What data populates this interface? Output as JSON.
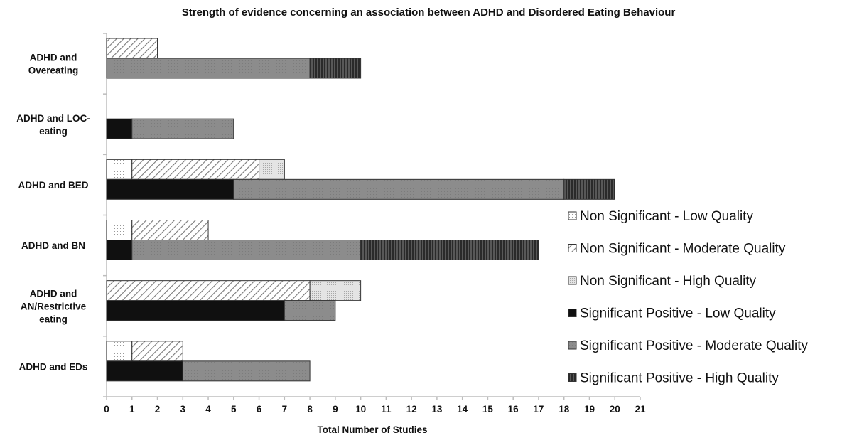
{
  "chart_data": {
    "type": "bar",
    "orientation": "horizontal",
    "stacked": true,
    "title": "Strength of evidence concerning an association between ADHD and Disordered Eating Behaviour",
    "xlabel": "Total Number of Studies",
    "ylabel": "",
    "xlim": [
      0,
      21
    ],
    "xticks": [
      "0",
      "1",
      "2",
      "3",
      "4",
      "5",
      "6",
      "7",
      "8",
      "9",
      "10",
      "11",
      "12",
      "13",
      "14",
      "15",
      "16",
      "17",
      "18",
      "19",
      "20",
      "21"
    ],
    "grid": false,
    "legend_position": "right",
    "categories": [
      {
        "lines": [
          "ADHD and",
          "Overeating"
        ]
      },
      {
        "lines": [
          "ADHD and LOC-",
          "eating"
        ]
      },
      {
        "lines": [
          "ADHD and BED"
        ]
      },
      {
        "lines": [
          "ADHD and BN"
        ]
      },
      {
        "lines": [
          "ADHD and",
          "AN/Restrictive",
          "eating"
        ]
      },
      {
        "lines": [
          "ADHD and EDs"
        ]
      }
    ],
    "series": [
      {
        "name": "Non Significant - Low Quality",
        "label_lead": "Non Significant",
        "label_tail": "- Low Quality",
        "group": "non-significant",
        "pattern": "dots",
        "values": [
          0,
          0,
          1,
          1,
          0,
          1
        ]
      },
      {
        "name": "Non Significant - Moderate Quality",
        "label_lead": "Non Significant",
        "label_tail": "- Moderate Quality",
        "group": "non-significant",
        "pattern": "diagonal",
        "values": [
          2,
          0,
          5,
          3,
          8,
          2
        ]
      },
      {
        "name": "Non Significant - High Quality",
        "label_lead": "Non Significant",
        "label_tail": "- High Quality",
        "group": "non-significant",
        "pattern": "light-dots",
        "values": [
          0,
          0,
          1,
          0,
          2,
          0
        ]
      },
      {
        "name": "Significant Positive - Low Quality",
        "label_lead": "Significant Positive",
        "label_tail": "- Low Quality",
        "group": "significant-positive",
        "pattern": "black",
        "values": [
          0,
          1,
          5,
          1,
          7,
          3
        ]
      },
      {
        "name": "Significant Positive - Moderate Quality",
        "label_lead": "Significant Positive",
        "label_tail": "- Moderate Quality",
        "group": "significant-positive",
        "pattern": "gray",
        "values": [
          8,
          4,
          13,
          9,
          2,
          5
        ]
      },
      {
        "name": "Significant Positive - High Quality",
        "label_lead": "Significant Positive",
        "label_tail": "- High Quality",
        "group": "significant-positive",
        "pattern": "vertical-stripes",
        "values": [
          2,
          0,
          2,
          7,
          0,
          0
        ]
      }
    ]
  }
}
